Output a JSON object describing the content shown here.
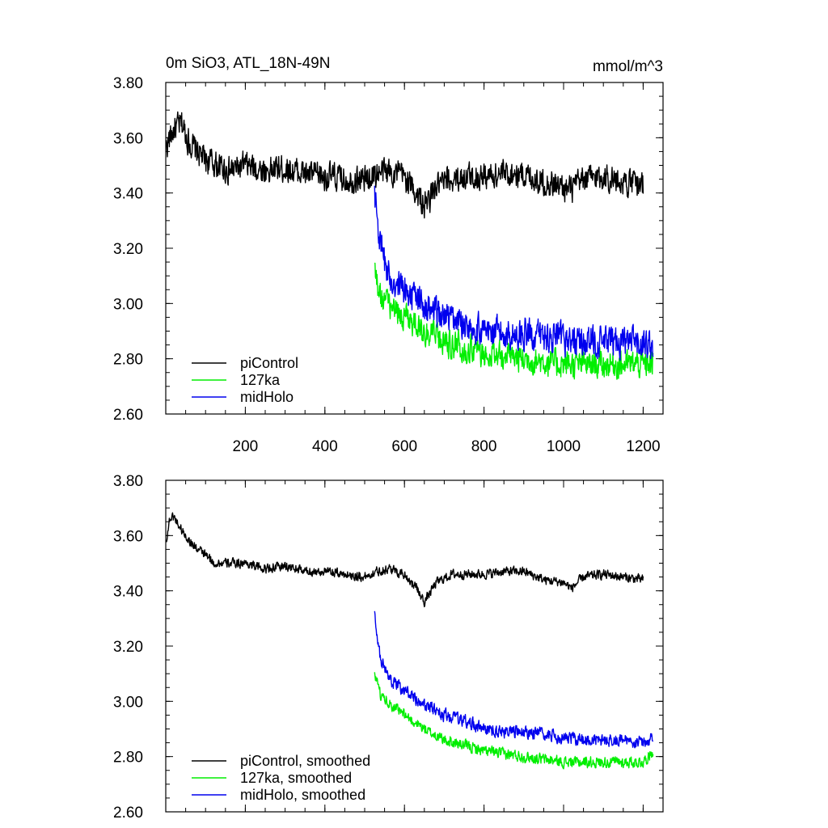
{
  "colors": {
    "piControl": "#000000",
    "ka127": "#00ee00",
    "midHolo": "#0000ee"
  },
  "chart_data": [
    {
      "type": "line",
      "title": "0m SiO3, ATL_18N-49N",
      "units": "mmol/m^3",
      "xlim": [
        0,
        1250
      ],
      "ylim": [
        2.6,
        3.8
      ],
      "xticks": [
        200,
        400,
        600,
        800,
        1000,
        1200
      ],
      "xtick_labels": [
        "200",
        "400",
        "600",
        "800",
        "1000",
        "1200"
      ],
      "yticks": [
        2.6,
        2.8,
        3.0,
        3.2,
        3.4,
        3.6,
        3.8
      ],
      "ytick_labels": [
        "2.60",
        "2.80",
        "3.00",
        "3.20",
        "3.40",
        "3.60",
        "3.80"
      ],
      "legend": [
        "piControl",
        "127ka",
        "midHolo"
      ],
      "legend_position": "bottom-left",
      "series": [
        {
          "name": "piControl",
          "color": "#000000",
          "x": [
            1,
            20,
            40,
            60,
            80,
            100,
            130,
            160,
            200,
            250,
            300,
            350,
            400,
            450,
            500,
            530,
            560,
            600,
            630,
            650,
            680,
            720,
            760,
            800,
            850,
            900,
            950,
            1000,
            1020,
            1050,
            1100,
            1150,
            1200
          ],
          "y": [
            3.57,
            3.63,
            3.65,
            3.58,
            3.55,
            3.52,
            3.5,
            3.48,
            3.5,
            3.48,
            3.49,
            3.47,
            3.46,
            3.45,
            3.45,
            3.47,
            3.48,
            3.46,
            3.4,
            3.35,
            3.42,
            3.45,
            3.46,
            3.46,
            3.47,
            3.47,
            3.44,
            3.42,
            3.41,
            3.45,
            3.46,
            3.44,
            3.43
          ],
          "noise": 0.045
        },
        {
          "name": "127ka",
          "color": "#00ee00",
          "x": [
            525,
            540,
            560,
            580,
            600,
            630,
            660,
            700,
            750,
            800,
            850,
            900,
            950,
            1000,
            1050,
            1100,
            1150,
            1200,
            1225
          ],
          "y": [
            3.12,
            3.03,
            3.0,
            2.97,
            2.95,
            2.92,
            2.89,
            2.86,
            2.84,
            2.82,
            2.81,
            2.8,
            2.79,
            2.78,
            2.78,
            2.78,
            2.78,
            2.78,
            2.78
          ],
          "noise": 0.045
        },
        {
          "name": "midHolo",
          "color": "#0000ee",
          "x": [
            525,
            540,
            560,
            580,
            600,
            630,
            660,
            700,
            750,
            800,
            850,
            900,
            950,
            1000,
            1050,
            1100,
            1150,
            1200,
            1225
          ],
          "y": [
            3.4,
            3.2,
            3.1,
            3.07,
            3.05,
            3.02,
            2.98,
            2.95,
            2.93,
            2.9,
            2.89,
            2.89,
            2.88,
            2.87,
            2.86,
            2.86,
            2.86,
            2.85,
            2.85
          ],
          "noise": 0.05
        }
      ]
    },
    {
      "type": "line",
      "title": "",
      "xlim": [
        0,
        1250
      ],
      "ylim": [
        2.6,
        3.8
      ],
      "xticks": [
        200,
        400,
        600,
        800,
        1000,
        1200
      ],
      "yticks": [
        2.6,
        2.8,
        3.0,
        3.2,
        3.4,
        3.6,
        3.8
      ],
      "ytick_labels": [
        "2.60",
        "2.80",
        "3.00",
        "3.20",
        "3.40",
        "3.60",
        "3.80"
      ],
      "legend": [
        "piControl, smoothed",
        "127ka, smoothed",
        "midHolo, smoothed"
      ],
      "legend_position": "bottom-left",
      "series": [
        {
          "name": "piControl, smoothed",
          "color": "#000000",
          "x": [
            1,
            10,
            20,
            40,
            60,
            80,
            100,
            120,
            160,
            200,
            250,
            300,
            350,
            400,
            450,
            500,
            530,
            560,
            600,
            630,
            650,
            680,
            720,
            760,
            800,
            850,
            900,
            950,
            1000,
            1020,
            1050,
            1100,
            1150,
            1200
          ],
          "y": [
            3.58,
            3.66,
            3.67,
            3.62,
            3.58,
            3.55,
            3.53,
            3.5,
            3.5,
            3.5,
            3.48,
            3.49,
            3.47,
            3.47,
            3.46,
            3.45,
            3.47,
            3.48,
            3.46,
            3.41,
            3.36,
            3.43,
            3.46,
            3.46,
            3.46,
            3.47,
            3.47,
            3.44,
            3.43,
            3.41,
            3.45,
            3.46,
            3.45,
            3.44
          ],
          "noise": 0.015
        },
        {
          "name": "127ka, smoothed",
          "color": "#00ee00",
          "x": [
            525,
            540,
            560,
            580,
            600,
            630,
            660,
            700,
            750,
            800,
            850,
            900,
            950,
            1000,
            1050,
            1100,
            1150,
            1200,
            1225
          ],
          "y": [
            3.1,
            3.02,
            3.0,
            2.97,
            2.95,
            2.92,
            2.89,
            2.86,
            2.84,
            2.82,
            2.81,
            2.8,
            2.79,
            2.78,
            2.78,
            2.78,
            2.78,
            2.78,
            2.82
          ],
          "noise": 0.018
        },
        {
          "name": "midHolo, smoothed",
          "color": "#0000ee",
          "x": [
            525,
            540,
            560,
            580,
            600,
            630,
            660,
            700,
            750,
            800,
            850,
            900,
            950,
            1000,
            1050,
            1100,
            1150,
            1200,
            1225
          ],
          "y": [
            3.32,
            3.15,
            3.08,
            3.06,
            3.04,
            3.01,
            2.98,
            2.95,
            2.93,
            2.9,
            2.89,
            2.89,
            2.88,
            2.87,
            2.86,
            2.86,
            2.86,
            2.85,
            2.87
          ],
          "noise": 0.02
        }
      ]
    }
  ]
}
